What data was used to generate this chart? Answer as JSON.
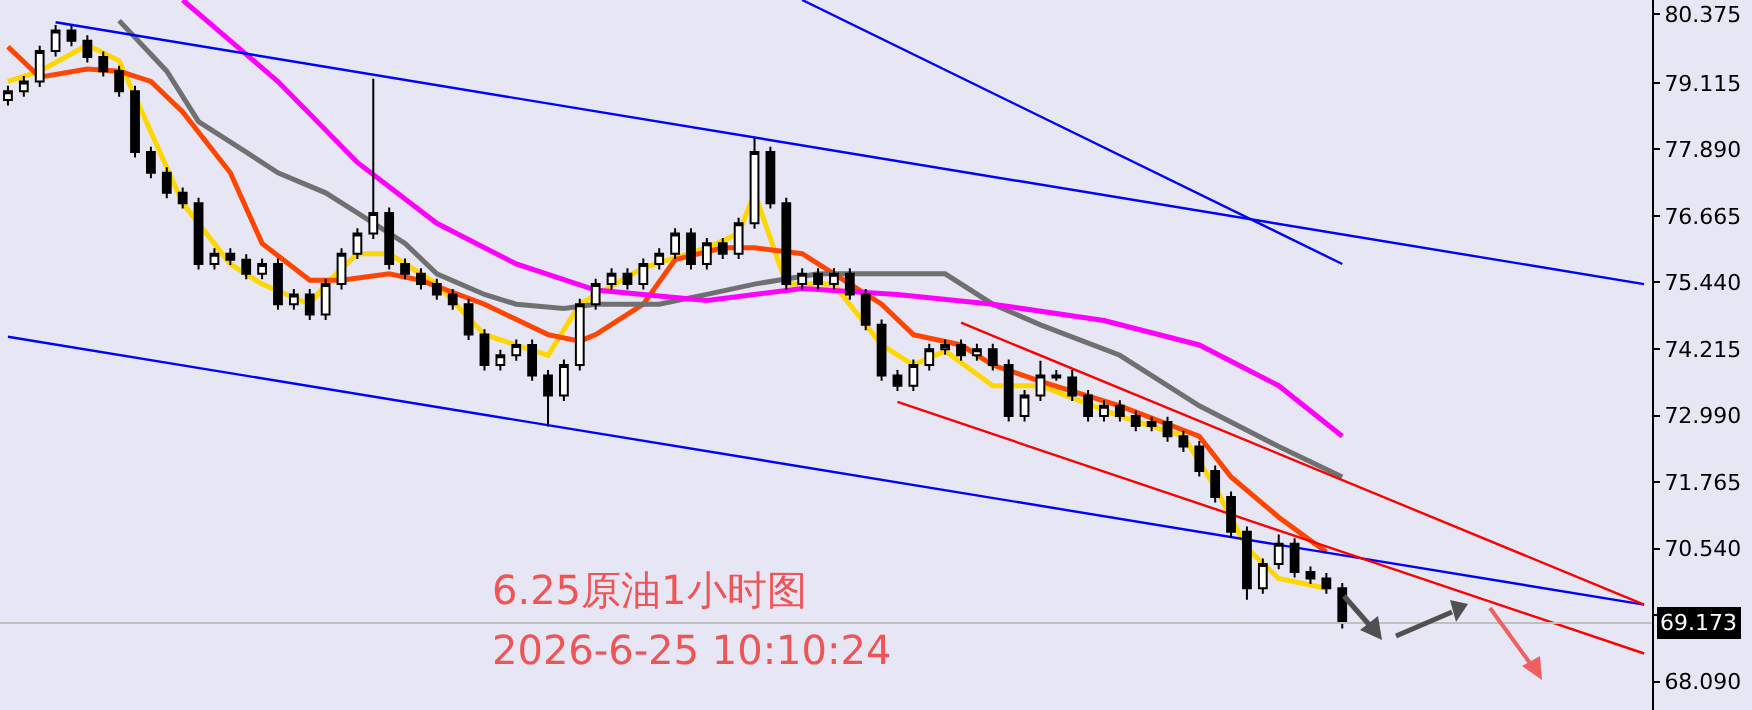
{
  "chart_data": {
    "type": "candlestick",
    "title": "6.25原油1小时图",
    "subtitle": "2026-6-25 10:10:24",
    "categories": [
      null,
      null,
      null,
      null,
      null,
      null,
      null,
      null,
      null,
      null,
      null,
      null,
      null,
      null,
      null,
      null,
      null,
      null,
      null,
      null,
      null,
      null,
      null,
      null,
      null,
      null,
      null,
      null,
      null,
      null,
      null,
      null,
      null,
      null,
      null,
      null,
      null,
      null,
      null,
      null,
      null,
      null,
      null,
      null,
      null,
      null,
      null,
      null,
      null,
      null,
      null,
      null,
      null,
      null,
      null,
      null,
      null,
      null,
      null,
      null,
      null,
      null,
      null,
      null,
      null,
      null,
      null,
      null,
      null,
      null,
      null,
      null,
      null,
      null,
      null,
      null,
      null,
      null,
      null,
      null,
      null,
      null,
      null,
      null,
      null,
      null,
      null,
      null,
      null,
      null,
      null,
      null,
      null,
      null,
      null,
      null,
      null,
      null,
      null,
      null,
      null,
      null,
      null,
      null
    ],
    "ohlc": [
      [
        78.8,
        79.06,
        78.7,
        78.96
      ],
      [
        78.96,
        79.24,
        78.86,
        79.14
      ],
      [
        79.14,
        79.8,
        79.04,
        79.7
      ],
      [
        79.7,
        80.18,
        79.6,
        80.08
      ],
      [
        80.08,
        80.18,
        79.79,
        79.89
      ],
      [
        79.89,
        79.99,
        79.49,
        79.59
      ],
      [
        79.59,
        79.69,
        79.23,
        79.33
      ],
      [
        79.33,
        79.43,
        78.86,
        78.96
      ],
      [
        78.96,
        79.06,
        77.74,
        77.84
      ],
      [
        77.84,
        77.94,
        77.36,
        77.46
      ],
      [
        77.46,
        77.56,
        76.99,
        77.09
      ],
      [
        77.09,
        77.19,
        76.8,
        76.9
      ],
      [
        76.9,
        77.0,
        75.68,
        75.78
      ],
      [
        75.78,
        76.07,
        75.68,
        75.97
      ],
      [
        75.97,
        76.07,
        75.76,
        75.86
      ],
      [
        75.86,
        75.96,
        75.5,
        75.6
      ],
      [
        75.6,
        75.88,
        75.5,
        75.78
      ],
      [
        75.78,
        75.88,
        74.94,
        75.04
      ],
      [
        75.04,
        75.32,
        74.94,
        75.22
      ],
      [
        75.22,
        75.32,
        74.75,
        74.85
      ],
      [
        74.85,
        75.51,
        74.75,
        75.41
      ],
      [
        75.41,
        76.07,
        75.31,
        75.97
      ],
      [
        75.97,
        76.44,
        75.87,
        76.34
      ],
      [
        76.34,
        79.19,
        76.24,
        76.72
      ],
      [
        76.72,
        76.82,
        75.68,
        75.78
      ],
      [
        75.78,
        75.88,
        75.5,
        75.6
      ],
      [
        75.6,
        75.7,
        75.31,
        75.41
      ],
      [
        75.41,
        75.51,
        75.12,
        75.22
      ],
      [
        75.22,
        75.32,
        74.94,
        75.04
      ],
      [
        75.04,
        75.14,
        74.38,
        74.48
      ],
      [
        74.48,
        74.58,
        73.82,
        73.92
      ],
      [
        73.92,
        74.2,
        73.82,
        74.1
      ],
      [
        74.1,
        74.39,
        74.0,
        74.29
      ],
      [
        74.29,
        74.39,
        73.63,
        73.73
      ],
      [
        73.73,
        73.83,
        72.79,
        73.36
      ],
      [
        73.36,
        74.02,
        73.26,
        73.92
      ],
      [
        73.92,
        75.14,
        73.82,
        75.04
      ],
      [
        75.04,
        75.51,
        74.94,
        75.41
      ],
      [
        75.41,
        75.7,
        75.31,
        75.6
      ],
      [
        75.6,
        75.7,
        75.31,
        75.41
      ],
      [
        75.41,
        75.88,
        75.31,
        75.78
      ],
      [
        75.78,
        76.07,
        75.68,
        75.97
      ],
      [
        75.97,
        76.44,
        75.87,
        76.34
      ],
      [
        76.34,
        76.44,
        75.68,
        75.78
      ],
      [
        75.78,
        76.26,
        75.68,
        76.16
      ],
      [
        76.16,
        76.26,
        75.87,
        75.97
      ],
      [
        75.97,
        76.63,
        75.87,
        76.53
      ],
      [
        76.53,
        78.1,
        76.43,
        77.84
      ],
      [
        77.84,
        77.94,
        76.8,
        76.9
      ],
      [
        76.9,
        77.0,
        75.31,
        75.41
      ],
      [
        75.41,
        75.7,
        75.31,
        75.6
      ],
      [
        75.6,
        75.7,
        75.31,
        75.41
      ],
      [
        75.41,
        75.7,
        75.31,
        75.6
      ],
      [
        75.6,
        75.7,
        75.12,
        75.22
      ],
      [
        75.22,
        75.32,
        74.56,
        74.66
      ],
      [
        74.66,
        74.76,
        73.63,
        73.73
      ],
      [
        73.73,
        73.83,
        73.44,
        73.54
      ],
      [
        73.54,
        74.02,
        73.44,
        73.92
      ],
      [
        73.92,
        74.31,
        73.82,
        74.21
      ],
      [
        74.21,
        74.39,
        74.11,
        74.29
      ],
      [
        74.29,
        74.39,
        74.0,
        74.1
      ],
      [
        74.1,
        74.31,
        74.0,
        74.21
      ],
      [
        74.21,
        74.31,
        73.82,
        73.92
      ],
      [
        73.92,
        74.02,
        72.88,
        72.98
      ],
      [
        72.98,
        73.46,
        72.88,
        73.36
      ],
      [
        73.36,
        74.0,
        73.26,
        73.73
      ],
      [
        73.73,
        73.83,
        73.63,
        73.69
      ],
      [
        73.69,
        73.83,
        73.26,
        73.36
      ],
      [
        73.36,
        73.46,
        72.88,
        72.98
      ],
      [
        72.98,
        73.27,
        72.88,
        73.17
      ],
      [
        73.17,
        73.27,
        72.88,
        72.98
      ],
      [
        72.98,
        73.08,
        72.7,
        72.8
      ],
      [
        72.8,
        72.97,
        72.7,
        72.87
      ],
      [
        72.87,
        72.97,
        72.51,
        72.61
      ],
      [
        72.61,
        72.71,
        72.32,
        72.42
      ],
      [
        72.42,
        72.52,
        71.87,
        71.97
      ],
      [
        71.97,
        72.07,
        71.39,
        71.49
      ],
      [
        71.49,
        71.59,
        70.75,
        70.85
      ],
      [
        70.85,
        70.95,
        69.6,
        69.81
      ],
      [
        69.81,
        70.36,
        69.71,
        70.26
      ],
      [
        70.26,
        70.8,
        70.16,
        70.63
      ],
      [
        70.63,
        70.73,
        70.01,
        70.11
      ],
      [
        70.11,
        70.21,
        69.89,
        69.99
      ],
      [
        69.99,
        70.09,
        69.71,
        69.81
      ],
      [
        69.81,
        69.91,
        69.07,
        69.17
      ],
      null,
      null,
      null,
      null,
      null,
      null,
      null,
      null,
      null,
      null,
      null,
      null,
      null,
      null,
      null,
      null,
      null,
      null,
      null
    ],
    "series": [
      {
        "type": "line",
        "color": "#ffd700",
        "values": [
          79.14,
          null,
          79.33,
          null,
          null,
          79.81,
          null,
          79.52,
          null,
          78.21,
          null,
          76.9,
          null,
          null,
          75.78,
          null,
          75.41,
          null,
          null,
          75.04,
          75.41,
          null,
          75.97,
          null,
          75.97,
          null,
          null,
          75.41,
          null,
          null,
          74.48,
          null,
          null,
          null,
          74.1,
          null,
          75.04,
          null,
          null,
          null,
          75.71,
          null,
          null,
          null,
          76.08,
          null,
          76.34,
          77.09,
          null,
          75.41,
          null,
          null,
          75.41,
          null,
          null,
          74.29,
          null,
          73.92,
          null,
          74.18,
          null,
          null,
          73.54,
          null,
          null,
          73.54,
          null,
          null,
          null,
          null,
          72.98,
          null,
          null,
          null,
          72.61,
          null,
          71.67,
          null,
          70.55,
          null,
          69.99,
          null,
          null,
          69.81,
          null,
          null,
          null,
          null,
          null,
          null,
          null,
          null,
          null,
          null,
          null,
          null,
          null,
          null,
          null,
          null,
          null,
          null,
          null,
          null
        ]
      },
      {
        "type": "line",
        "color": "#ff4500",
        "values": [
          79.78,
          null,
          79.22,
          null,
          null,
          79.37,
          null,
          79.33,
          null,
          79.14,
          null,
          78.58,
          null,
          null,
          77.46,
          null,
          76.16,
          null,
          null,
          75.48,
          null,
          75.48,
          null,
          null,
          75.6,
          null,
          75.48,
          null,
          null,
          null,
          75.04,
          null,
          null,
          null,
          74.48,
          null,
          74.36,
          74.48,
          null,
          null,
          75.04,
          null,
          75.86,
          null,
          null,
          76.08,
          null,
          76.08,
          null,
          null,
          75.97,
          null,
          75.6,
          null,
          null,
          75.04,
          null,
          74.48,
          null,
          null,
          74.29,
          null,
          73.92,
          null,
          null,
          73.62,
          null,
          null,
          null,
          null,
          73.17,
          null,
          null,
          null,
          null,
          72.61,
          null,
          71.86,
          null,
          null,
          71.12,
          null,
          null,
          70.48,
          null,
          null,
          null,
          null,
          null,
          null,
          null,
          null,
          null,
          null,
          null,
          null,
          null,
          null,
          null,
          null,
          null,
          null,
          null,
          null
        ]
      },
      {
        "type": "line",
        "color": "#707070",
        "values": [
          null,
          null,
          null,
          null,
          null,
          null,
          null,
          80.26,
          null,
          null,
          79.33,
          null,
          78.4,
          null,
          null,
          77.84,
          null,
          77.46,
          null,
          null,
          77.09,
          null,
          76.72,
          null,
          null,
          76.16,
          null,
          75.6,
          null,
          null,
          75.22,
          null,
          75.04,
          null,
          null,
          74.96,
          null,
          75.04,
          null,
          null,
          null,
          75.04,
          null,
          null,
          75.22,
          null,
          null,
          75.41,
          null,
          null,
          null,
          75.6,
          null,
          null,
          null,
          75.6,
          null,
          null,
          null,
          75.6,
          null,
          null,
          75.04,
          null,
          null,
          74.66,
          null,
          null,
          null,
          null,
          74.1,
          null,
          null,
          null,
          null,
          73.17,
          null,
          null,
          null,
          null,
          72.42,
          null,
          null,
          null,
          71.86,
          null,
          null,
          null,
          null,
          null,
          null,
          null,
          null,
          null,
          null,
          null,
          null,
          null,
          null,
          null,
          null,
          null,
          null,
          null
        ]
      },
      {
        "type": "line",
        "color": "#ff00ff",
        "values": [
          null,
          null,
          null,
          null,
          null,
          null,
          null,
          null,
          null,
          null,
          null,
          80.64,
          null,
          null,
          null,
          null,
          null,
          79.14,
          null,
          null,
          null,
          null,
          77.65,
          null,
          null,
          null,
          null,
          76.53,
          null,
          null,
          null,
          null,
          75.78,
          null,
          null,
          null,
          null,
          75.3,
          null,
          null,
          null,
          null,
          null,
          null,
          75.11,
          null,
          null,
          null,
          null,
          null,
          75.33,
          null,
          null,
          null,
          null,
          null,
          75.22,
          null,
          null,
          null,
          null,
          null,
          75.04,
          null,
          null,
          null,
          null,
          null,
          null,
          74.74,
          null,
          null,
          null,
          null,
          null,
          74.29,
          null,
          null,
          null,
          null,
          73.54,
          null,
          null,
          null,
          72.61,
          null,
          null,
          null,
          null,
          null,
          null,
          null,
          null,
          null,
          null,
          null,
          null,
          null,
          null,
          null,
          null,
          null,
          null,
          null
        ]
      },
      {
        "type": "line",
        "color": "#0000ff",
        "values": [
          null,
          null,
          null,
          80.23,
          null,
          null,
          null,
          null,
          null,
          null,
          null,
          null,
          null,
          null,
          null,
          null,
          null,
          null,
          null,
          null,
          null,
          null,
          null,
          null,
          null,
          null,
          null,
          null,
          null,
          null,
          null,
          null,
          null,
          null,
          null,
          null,
          null,
          null,
          null,
          null,
          null,
          null,
          null,
          null,
          null,
          null,
          null,
          null,
          null,
          null,
          null,
          null,
          null,
          null,
          null,
          null,
          null,
          null,
          null,
          null,
          null,
          null,
          null,
          null,
          null,
          null,
          null,
          null,
          null,
          null,
          null,
          null,
          null,
          null,
          null,
          null,
          null,
          null,
          null,
          null,
          null,
          null,
          null,
          null,
          null,
          null,
          null,
          null,
          null,
          null,
          null,
          null,
          null,
          null,
          null,
          null,
          null,
          null,
          null,
          null,
          null,
          null,
          null,
          75.41
        ]
      },
      {
        "type": "line",
        "color": "#0000ff",
        "values": [
          74.44,
          null,
          null,
          null,
          null,
          null,
          null,
          null,
          null,
          null,
          null,
          null,
          null,
          null,
          null,
          null,
          null,
          null,
          null,
          null,
          null,
          null,
          null,
          null,
          null,
          null,
          null,
          null,
          null,
          null,
          null,
          null,
          null,
          null,
          null,
          null,
          null,
          null,
          null,
          null,
          null,
          null,
          null,
          null,
          null,
          null,
          null,
          null,
          null,
          null,
          null,
          null,
          null,
          null,
          null,
          null,
          null,
          null,
          null,
          null,
          null,
          null,
          null,
          null,
          null,
          null,
          null,
          null,
          null,
          null,
          null,
          null,
          null,
          null,
          null,
          null,
          null,
          null,
          null,
          null,
          null,
          null,
          null,
          null,
          null,
          null,
          null,
          null,
          null,
          null,
          null,
          null,
          null,
          null,
          null,
          null,
          null,
          null,
          null,
          null,
          null,
          null,
          null,
          69.51
        ]
      },
      {
        "type": "line",
        "color": "#0000ff",
        "values": [
          null,
          null,
          null,
          null,
          null,
          null,
          null,
          null,
          null,
          null,
          null,
          null,
          null,
          null,
          null,
          null,
          null,
          null,
          null,
          null,
          null,
          null,
          null,
          null,
          null,
          null,
          null,
          null,
          null,
          null,
          null,
          null,
          null,
          null,
          null,
          null,
          null,
          null,
          null,
          null,
          null,
          null,
          null,
          null,
          null,
          null,
          null,
          null,
          null,
          null,
          80.64,
          null,
          null,
          null,
          null,
          null,
          null,
          null,
          null,
          null,
          null,
          null,
          null,
          null,
          null,
          null,
          null,
          null,
          null,
          null,
          null,
          null,
          null,
          null,
          null,
          null,
          null,
          null,
          null,
          null,
          null,
          null,
          null,
          null,
          75.78,
          null,
          null,
          null,
          null,
          null,
          null,
          null,
          null,
          null,
          null,
          null,
          null,
          null,
          null,
          null,
          null,
          null,
          null,
          null
        ]
      },
      {
        "type": "line",
        "color": "#ff0000",
        "values": [
          null,
          null,
          null,
          null,
          null,
          null,
          null,
          null,
          null,
          null,
          null,
          null,
          null,
          null,
          null,
          null,
          null,
          null,
          null,
          null,
          null,
          null,
          null,
          null,
          null,
          null,
          null,
          null,
          null,
          null,
          null,
          null,
          null,
          null,
          null,
          null,
          null,
          null,
          null,
          null,
          null,
          null,
          null,
          null,
          null,
          null,
          null,
          null,
          null,
          null,
          null,
          null,
          null,
          null,
          null,
          null,
          null,
          null,
          null,
          null,
          74.7,
          null,
          null,
          null,
          null,
          null,
          null,
          null,
          null,
          null,
          null,
          null,
          null,
          null,
          null,
          null,
          null,
          null,
          null,
          null,
          null,
          null,
          null,
          null,
          null,
          null,
          null,
          null,
          null,
          null,
          null,
          null,
          null,
          null,
          null,
          null,
          null,
          null,
          null,
          null,
          null,
          null,
          null,
          69.51
        ]
      },
      {
        "type": "line",
        "color": "#ff0000",
        "values": [
          null,
          null,
          null,
          null,
          null,
          null,
          null,
          null,
          null,
          null,
          null,
          null,
          null,
          null,
          null,
          null,
          null,
          null,
          null,
          null,
          null,
          null,
          null,
          null,
          null,
          null,
          null,
          null,
          null,
          null,
          null,
          null,
          null,
          null,
          null,
          null,
          null,
          null,
          null,
          null,
          null,
          null,
          null,
          null,
          null,
          null,
          null,
          null,
          null,
          null,
          null,
          null,
          null,
          null,
          null,
          null,
          73.24,
          null,
          null,
          null,
          null,
          null,
          null,
          null,
          null,
          null,
          null,
          null,
          null,
          null,
          null,
          null,
          null,
          null,
          null,
          null,
          null,
          null,
          null,
          null,
          null,
          null,
          null,
          null,
          null,
          null,
          null,
          null,
          null,
          null,
          null,
          null,
          null,
          null,
          null,
          null,
          null,
          null,
          null,
          null,
          null,
          null,
          null,
          68.61
        ]
      }
    ],
    "ylim": [
      67.57,
      80.64
    ],
    "yticks": [
      80.375,
      79.115,
      {
        "value": 77.89,
        "label": "77.890"
      },
      76.665,
      {
        "value": 75.44,
        "label": "75.440"
      },
      74.215,
      {
        "value": 72.99,
        "label": "72.990"
      },
      71.765,
      {
        "value": 70.54,
        "label": "70.540"
      },
      {
        "value": 69.315,
        "label": null
      },
      {
        "value": 68.09,
        "label": "68.090"
      }
    ],
    "ref_lines": [
      {
        "axis": "y",
        "value": 69.173,
        "label": "69.173",
        "color": "#c0c0c0"
      }
    ],
    "tick_labels": "y"
  }
}
